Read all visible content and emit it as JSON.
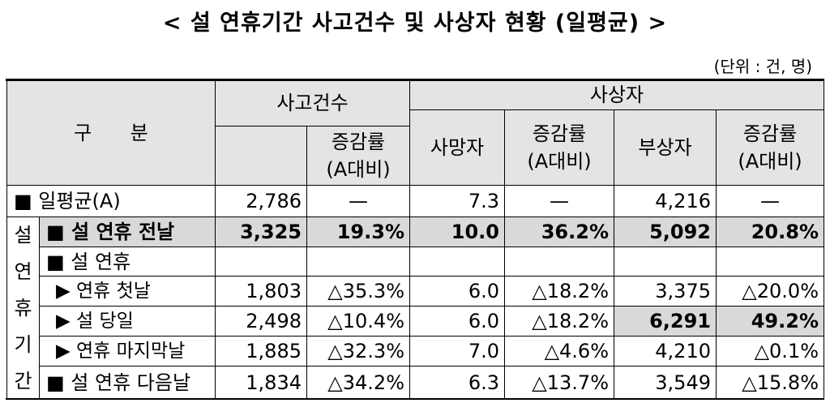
{
  "title": "< 설 연휴기간 사고건수 및 사상자 현황 (일평균) >",
  "unit": "(단위 : 건, 명)",
  "header": {
    "category": "구   분",
    "accidents": "사고건수",
    "casualties": "사상자",
    "rate_1": "증감률\n(A대비)",
    "deaths": "사망자",
    "rate_2": "증감률\n(A대비)",
    "injured": "부상자",
    "rate_3": "증감률\n(A대비)"
  },
  "side_label": "설연휴기간",
  "rows": [
    {
      "label": "■ 일평균(A)",
      "values": [
        "2,786",
        "—",
        "7.3",
        "—",
        "4,216",
        "—"
      ]
    },
    {
      "label": "■ 설 연휴 전날",
      "values": [
        "3,325",
        "19.3%",
        "10.0",
        "36.2%",
        "5,092",
        "20.8%"
      ],
      "shaded": true
    },
    {
      "label": "■ 설 연휴"
    },
    {
      "label": "▶ 연휴 첫날",
      "values": [
        "1,803",
        "△35.3%",
        "6.0",
        "△18.2%",
        "3,375",
        "△20.0%"
      ],
      "indent": true
    },
    {
      "label": "▶ 설 당일",
      "values": [
        "2,498",
        "△10.4%",
        "6.0",
        "△18.2%",
        "6,291",
        "49.2%"
      ],
      "indent": true,
      "shaded_cols": [
        4,
        5
      ]
    },
    {
      "label": "▶ 연휴 마지막날",
      "values": [
        "1,885",
        "△32.3%",
        "7.0",
        "△4.6%",
        "4,210",
        "△0.1%"
      ],
      "indent": true
    },
    {
      "label": "■ 설 연휴 다음날",
      "values": [
        "1,834",
        "△34.2%",
        "6.3",
        "△13.7%",
        "3,549",
        "△15.8%"
      ]
    }
  ]
}
